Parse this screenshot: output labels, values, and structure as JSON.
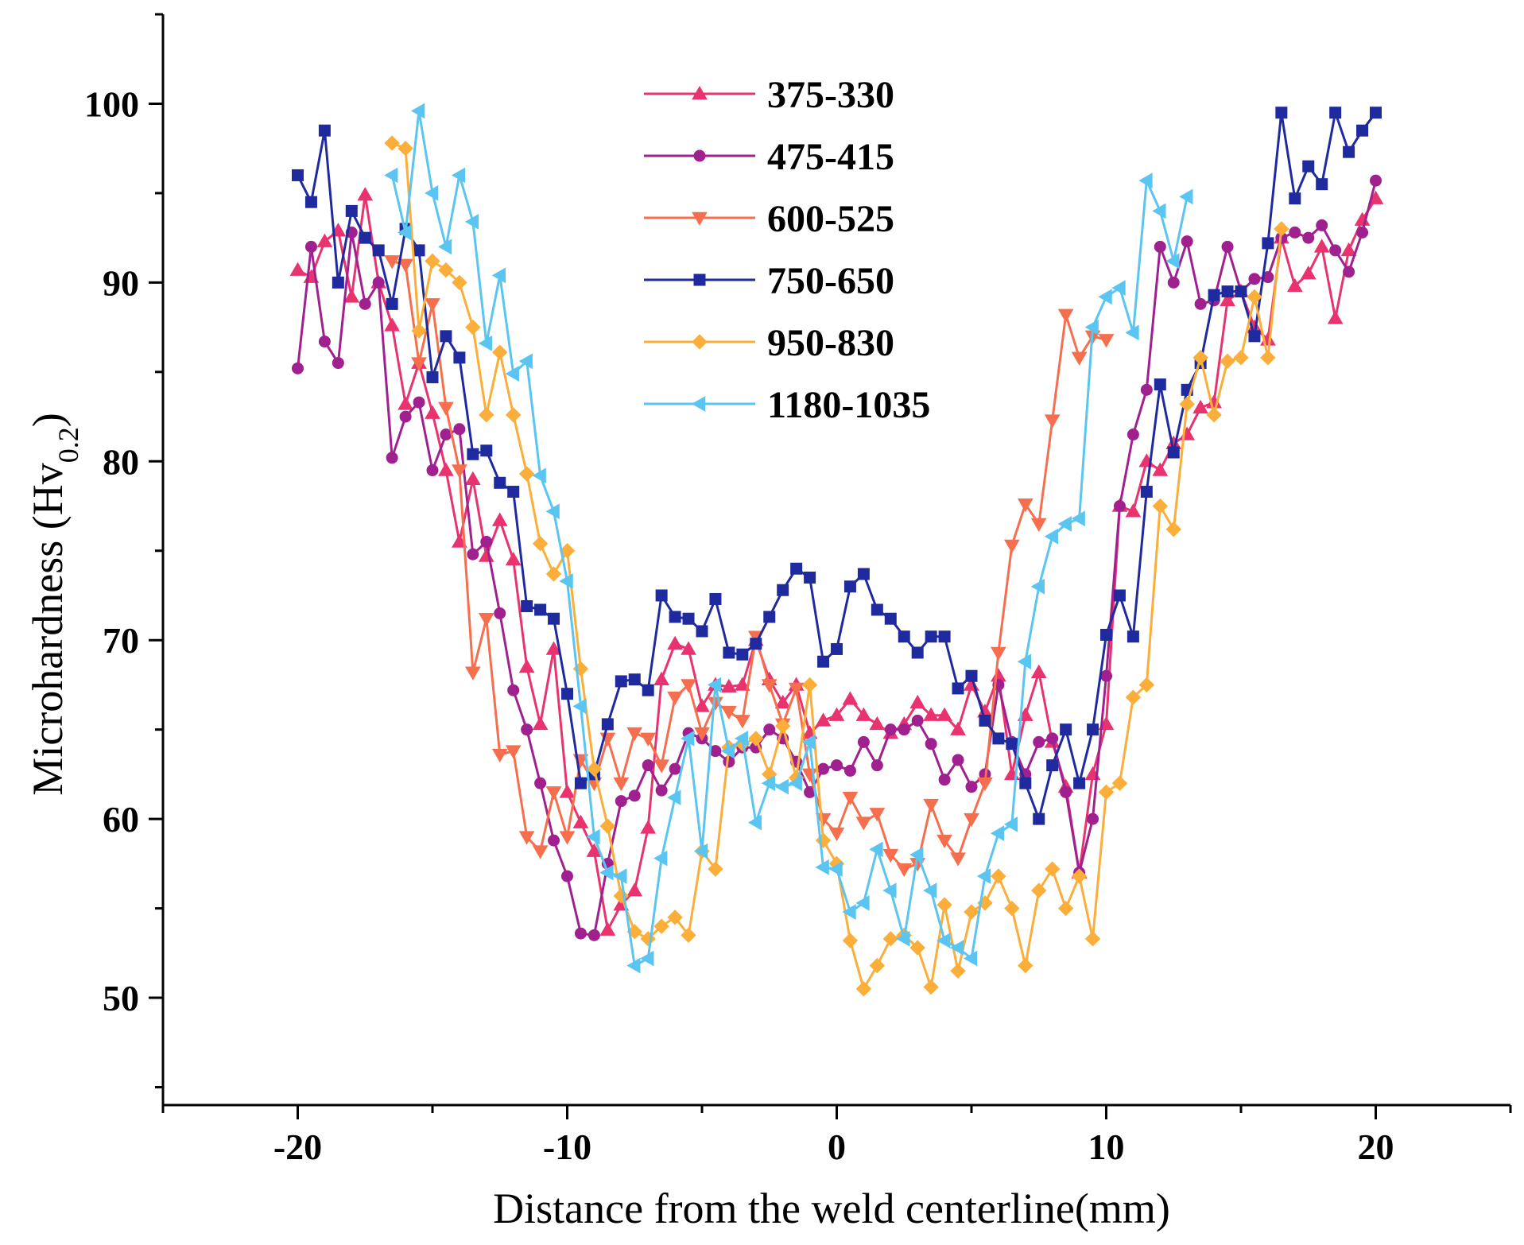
{
  "chart_data": {
    "type": "line",
    "title": "",
    "xlabel": "Distance from the weld centerline(mm)",
    "ylabel_main": "Microhardness (Hv",
    "ylabel_sub": "0.2",
    "ylabel_close": ")",
    "xlim": [
      -25,
      25
    ],
    "ylim": [
      44,
      105
    ],
    "xticks": [
      -20,
      -10,
      0,
      10,
      20
    ],
    "xtick_labels": [
      "-20",
      "-10",
      "0",
      "10",
      "20"
    ],
    "yticks": [
      50,
      60,
      70,
      80,
      90,
      100
    ],
    "ytick_labels": [
      "50",
      "60",
      "70",
      "80",
      "90",
      "100"
    ],
    "legend_position": "top-center",
    "series": [
      {
        "name": "375-330",
        "color": "#E8336E",
        "marker": "triangle-up",
        "x": [
          -20,
          -19.5,
          -19,
          -18.5,
          -18,
          -17.5,
          -17,
          -16.5,
          -16,
          -15.5,
          -15,
          -14.5,
          -14,
          -13.5,
          -13,
          -12.5,
          -12,
          -11.5,
          -11,
          -10.5,
          -10,
          -9.5,
          -9,
          -8.5,
          -8,
          -7.5,
          -7,
          -6.5,
          -6,
          -5.5,
          -5,
          -4.5,
          -4,
          -3.5,
          -3,
          -2.5,
          -2,
          -1.5,
          -1,
          -0.5,
          0,
          0.5,
          1,
          1.5,
          2,
          2.5,
          3,
          3.5,
          4,
          4.5,
          5,
          5.5,
          6,
          6.5,
          7,
          7.5,
          8,
          8.5,
          9,
          9.5,
          10,
          10.5,
          11,
          11.5,
          12,
          12.5,
          13,
          13.5,
          14,
          14.5,
          15,
          15.5,
          16,
          16.5,
          17,
          17.5,
          18,
          18.5,
          19,
          19.5,
          20
        ],
        "values": [
          90.7,
          90.3,
          92.3,
          92.9,
          89.2,
          94.9,
          90,
          87.6,
          83.2,
          85.5,
          82.7,
          79.5,
          75.5,
          79,
          74.7,
          76.7,
          74.5,
          68.5,
          65.3,
          69.5,
          61.5,
          59.8,
          58.2,
          53.8,
          55.2,
          56.0,
          59.5,
          67.8,
          69.8,
          69.5,
          66.3,
          67.5,
          67.4,
          67.5,
          70,
          67.8,
          66.5,
          67.5,
          64.8,
          65.5,
          65.8,
          66.7,
          65.8,
          65.3,
          64.8,
          65.3,
          66.5,
          65.8,
          65.8,
          65.0,
          67.5,
          66.0,
          68.0,
          62.5,
          65.8,
          68.2,
          64.3,
          61.8,
          57.0,
          62.5,
          65.3,
          77.5,
          77.2,
          80.0,
          79.5,
          81.0,
          81.5,
          83.0,
          83.3,
          89.0,
          89.5,
          87.5,
          86.8,
          92.5,
          89.8,
          90.5,
          92.0,
          88.0,
          91.8,
          93.5,
          94.7
        ]
      },
      {
        "name": "475-415",
        "color": "#A0208F",
        "marker": "circle",
        "x": [
          -20,
          -19.5,
          -19,
          -18.5,
          -18,
          -17.5,
          -17,
          -16.5,
          -16,
          -15.5,
          -15,
          -14.5,
          -14,
          -13.5,
          -13,
          -12.5,
          -12,
          -11.5,
          -11,
          -10.5,
          -10,
          -9.5,
          -9,
          -8.5,
          -8,
          -7.5,
          -7,
          -6.5,
          -6,
          -5.5,
          -5,
          -4.5,
          -4,
          -3.5,
          -3,
          -2.5,
          -2,
          -1.5,
          -1,
          -0.5,
          0,
          0.5,
          1,
          1.5,
          2,
          2.5,
          3,
          3.5,
          4,
          4.5,
          5,
          5.5,
          6,
          6.5,
          7,
          7.5,
          8,
          8.5,
          9,
          9.5,
          10,
          10.5,
          11,
          11.5,
          12,
          12.5,
          13,
          13.5,
          14,
          14.5,
          15,
          15.5,
          16,
          16.5,
          17,
          17.5,
          18,
          18.5,
          19,
          19.5,
          20
        ],
        "values": [
          85.2,
          92.0,
          86.7,
          85.5,
          92.8,
          88.8,
          90.0,
          80.2,
          82.5,
          83.3,
          79.5,
          81.5,
          81.8,
          74.8,
          75.5,
          71.5,
          67.2,
          65.0,
          62.0,
          58.8,
          56.8,
          53.6,
          53.5,
          57.5,
          61.0,
          61.3,
          63.0,
          61.6,
          62.8,
          64.8,
          64.5,
          63.8,
          63.2,
          64.0,
          64.0,
          65.0,
          64.5,
          63.2,
          61.5,
          62.8,
          63.0,
          62.7,
          64.3,
          63.0,
          65.0,
          65.0,
          65.5,
          64.2,
          62.2,
          63.3,
          61.8,
          62.5,
          67.5,
          64.3,
          62.5,
          64.3,
          64.5,
          61.5,
          57.0,
          60.0,
          68.0,
          77.5,
          81.5,
          84.0,
          92.0,
          90.0,
          92.3,
          88.8,
          89.0,
          92.0,
          89.5,
          90.2,
          90.3,
          92.5,
          92.8,
          92.5,
          93.2,
          91.8,
          90.6,
          92.8,
          95.7
        ]
      },
      {
        "name": "600-525",
        "color": "#F56F4E",
        "marker": "triangle-down",
        "x": [
          -16.5,
          -16,
          -15.5,
          -15,
          -14.5,
          -14,
          -13.5,
          -13,
          -12.5,
          -12,
          -11.5,
          -11,
          -10.5,
          -10,
          -9.5,
          -9,
          -8.5,
          -8,
          -7.5,
          -7,
          -6.5,
          -6,
          -5.5,
          -5,
          -4.5,
          -4,
          -3.5,
          -3,
          -2.5,
          -2,
          -1.5,
          -1,
          -0.5,
          0,
          0.5,
          1,
          1.5,
          2,
          2.5,
          3,
          3.5,
          4,
          4.5,
          5,
          5.5,
          6,
          6.5,
          7,
          7.5,
          8,
          8.5,
          9,
          9.5,
          10
        ],
        "values": [
          91.2,
          91.0,
          85.5,
          88.8,
          83.0,
          79.5,
          68.2,
          71.2,
          63.6,
          63.8,
          59.0,
          58.2,
          61.5,
          59.0,
          63.3,
          62.0,
          64.5,
          62.0,
          64.8,
          64.5,
          63.0,
          66.8,
          67.5,
          64.8,
          66.5,
          66.0,
          65.5,
          70.2,
          67.5,
          65.3,
          67.3,
          62.5,
          60.0,
          59.2,
          61.2,
          59.8,
          60.3,
          58.0,
          57.2,
          57.5,
          60.8,
          58.8,
          57.8,
          60.0,
          62.0,
          69.3,
          75.3,
          77.6,
          76.5,
          82.3,
          88.2,
          85.8,
          87.0,
          86.8
        ]
      },
      {
        "name": "750-650",
        "color": "#1F2A9F",
        "marker": "square",
        "x": [
          -20,
          -19.5,
          -19,
          -18.5,
          -18,
          -17.5,
          -17,
          -16.5,
          -16,
          -15.5,
          -15,
          -14.5,
          -14,
          -13.5,
          -13,
          -12.5,
          -12,
          -11.5,
          -11,
          -10.5,
          -10,
          -9.5,
          -9,
          -8.5,
          -8,
          -7.5,
          -7,
          -6.5,
          -6,
          -5.5,
          -5,
          -4.5,
          -4,
          -3.5,
          -3,
          -2.5,
          -2,
          -1.5,
          -1,
          -0.5,
          0,
          0.5,
          1,
          1.5,
          2,
          2.5,
          3,
          3.5,
          4,
          4.5,
          5,
          5.5,
          6,
          6.5,
          7,
          7.5,
          8,
          8.5,
          9,
          9.5,
          10,
          10.5,
          11,
          11.5,
          12,
          12.5,
          13,
          13.5,
          14,
          14.5,
          15,
          15.5,
          16,
          16.5,
          17,
          17.5,
          18,
          18.5,
          19,
          19.5,
          20
        ],
        "values": [
          96.0,
          94.5,
          98.5,
          90.0,
          94.0,
          92.5,
          91.8,
          88.8,
          93.0,
          91.8,
          84.7,
          87.0,
          85.8,
          80.4,
          80.6,
          78.8,
          78.3,
          71.9,
          71.7,
          71.2,
          67.0,
          62.0,
          62.5,
          65.3,
          67.7,
          67.8,
          67.2,
          72.5,
          71.3,
          71.2,
          70.5,
          72.3,
          69.3,
          69.2,
          69.8,
          71.3,
          72.8,
          74.0,
          73.5,
          68.8,
          69.5,
          73.0,
          73.7,
          71.7,
          71.2,
          70.2,
          69.3,
          70.2,
          70.2,
          67.3,
          68.0,
          65.5,
          64.5,
          64.2,
          62.0,
          60.0,
          63.0,
          65.0,
          62.0,
          65.0,
          70.3,
          72.5,
          70.2,
          78.3,
          84.3,
          80.5,
          84.0,
          85.5,
          89.3,
          89.5,
          89.5,
          87.0,
          92.2,
          99.5,
          94.7,
          96.5,
          95.5,
          99.5,
          97.3,
          98.5,
          99.5
        ]
      },
      {
        "name": "950-830",
        "color": "#FBAE3A",
        "marker": "diamond",
        "x": [
          -16.5,
          -16,
          -15.5,
          -15,
          -14.5,
          -14,
          -13.5,
          -13,
          -12.5,
          -12,
          -11.5,
          -11,
          -10.5,
          -10,
          -9.5,
          -9,
          -8.5,
          -8,
          -7.5,
          -7,
          -6.5,
          -6,
          -5.5,
          -5,
          -4.5,
          -4,
          -3.5,
          -3,
          -2.5,
          -2,
          -1.5,
          -1,
          -0.5,
          0,
          0.5,
          1,
          1.5,
          2,
          2.5,
          3,
          3.5,
          4,
          4.5,
          5,
          5.5,
          6,
          6.5,
          7,
          7.5,
          8,
          8.5,
          9,
          9.5,
          10,
          10.5,
          11,
          11.5,
          12,
          12.5,
          13,
          13.5,
          14,
          14.5,
          15,
          15.5,
          16,
          16.5
        ],
        "values": [
          97.8,
          97.5,
          87.3,
          91.2,
          90.7,
          90.0,
          87.5,
          82.6,
          86.1,
          82.6,
          79.3,
          75.4,
          73.7,
          75.0,
          68.4,
          62.8,
          59.6,
          55.7,
          53.7,
          53.3,
          54.0,
          54.5,
          53.5,
          58.2,
          57.2,
          64.0,
          64.2,
          64.5,
          62.5,
          65.2,
          62.3,
          67.5,
          58.8,
          57.5,
          53.2,
          50.5,
          51.8,
          53.3,
          53.5,
          52.8,
          50.6,
          55.2,
          51.5,
          54.8,
          55.3,
          56.8,
          55.0,
          51.8,
          56.0,
          57.2,
          55.0,
          56.8,
          53.3,
          61.5,
          62.0,
          66.8,
          67.5,
          77.5,
          76.2,
          83.2,
          85.8,
          82.6,
          85.6,
          85.8,
          89.2,
          85.8,
          93.0
        ]
      },
      {
        "name": "1180-1035",
        "color": "#5BC5F2",
        "marker": "triangle-left",
        "x": [
          -16.5,
          -16,
          -15.5,
          -15,
          -14.5,
          -14,
          -13.5,
          -13,
          -12.5,
          -12,
          -11.5,
          -11,
          -10.5,
          -10,
          -9.5,
          -9,
          -8.5,
          -8,
          -7.5,
          -7,
          -6.5,
          -6,
          -5.5,
          -5,
          -4.5,
          -4,
          -3.5,
          -3,
          -2.5,
          -2,
          -1.5,
          -1,
          -0.5,
          0,
          0.5,
          1,
          1.5,
          2,
          2.5,
          3,
          3.5,
          4,
          4.5,
          5,
          5.5,
          6,
          6.5,
          7,
          7.5,
          8,
          8.5,
          9,
          9.5,
          10,
          10.5,
          11,
          11.5,
          12,
          12.5,
          13
        ],
        "values": [
          96.0,
          92.8,
          99.6,
          95.0,
          92.0,
          96.0,
          93.4,
          86.6,
          90.4,
          84.9,
          85.6,
          79.2,
          77.2,
          73.3,
          66.3,
          59.0,
          57.0,
          56.8,
          51.8,
          52.2,
          57.8,
          61.2,
          64.5,
          58.2,
          67.5,
          63.8,
          64.5,
          59.8,
          62.0,
          61.8,
          62.0,
          64.3,
          57.3,
          57.2,
          54.8,
          55.3,
          58.3,
          56.0,
          53.3,
          58.0,
          56.0,
          53.2,
          52.8,
          52.2,
          56.8,
          59.2,
          59.7,
          68.8,
          73.0,
          75.8,
          76.5,
          76.8,
          87.5,
          89.2,
          89.7,
          87.2,
          95.7,
          94.0,
          91.2,
          94.8
        ]
      }
    ]
  }
}
